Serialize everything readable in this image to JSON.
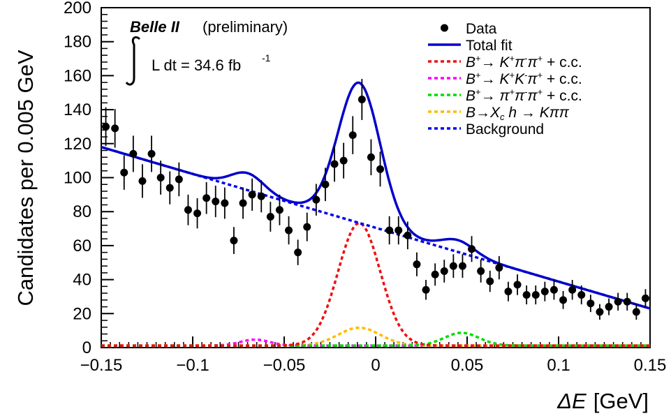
{
  "chart_data": {
    "type": "scatter",
    "title": "",
    "experiment": "Belle II",
    "status": "(preliminary)",
    "luminosity": "L dt = 34.6 fb",
    "luminosity_exp": "-1",
    "xlabel_symbol": "ΔE",
    "xlabel_unit": "[GeV]",
    "ylabel": "Candidates per 0.005 GeV",
    "xlim": [
      -0.15,
      0.15
    ],
    "ylim": [
      0,
      200
    ],
    "xticks": [
      -0.15,
      -0.1,
      -0.05,
      0,
      0.05,
      0.1,
      0.15
    ],
    "xtick_labels": [
      "−0.15",
      "−0.1",
      "−0.05",
      "0",
      "0.05",
      "0.1",
      "0.15"
    ],
    "yticks": [
      0,
      20,
      40,
      60,
      80,
      100,
      120,
      140,
      160,
      180,
      200
    ],
    "ytick_labels": [
      "0",
      "20",
      "40",
      "60",
      "80",
      "100",
      "120",
      "140",
      "160",
      "180",
      "200"
    ],
    "grid": false,
    "legend_position": "top-right",
    "data_points": {
      "x": [
        -0.1475,
        -0.1425,
        -0.1375,
        -0.1325,
        -0.1275,
        -0.1225,
        -0.1175,
        -0.1125,
        -0.1075,
        -0.1025,
        -0.0975,
        -0.0925,
        -0.0875,
        -0.0825,
        -0.0775,
        -0.0725,
        -0.0675,
        -0.0625,
        -0.0575,
        -0.0525,
        -0.0475,
        -0.0425,
        -0.0375,
        -0.0325,
        -0.0275,
        -0.0225,
        -0.0175,
        -0.0125,
        -0.0075,
        -0.0025,
        0.0025,
        0.0075,
        0.0125,
        0.0175,
        0.0225,
        0.0275,
        0.0325,
        0.0375,
        0.0425,
        0.0475,
        0.0525,
        0.0575,
        0.0625,
        0.0675,
        0.0725,
        0.0775,
        0.0825,
        0.0875,
        0.0925,
        0.0975,
        0.1025,
        0.1075,
        0.1125,
        0.1175,
        0.1225,
        0.1275,
        0.1325,
        0.1375,
        0.1425,
        0.1475
      ],
      "y": [
        130,
        129,
        103,
        114,
        98,
        114,
        100,
        94,
        99,
        81,
        79,
        88,
        86,
        85,
        63,
        85,
        90,
        89,
        77,
        81,
        69,
        56,
        71,
        87,
        96,
        108,
        110,
        125,
        146,
        112,
        105,
        69,
        69,
        66,
        49,
        34,
        43,
        45,
        48,
        48,
        58,
        45,
        39,
        47,
        33,
        37,
        31,
        31,
        33,
        34,
        28,
        34,
        31,
        26,
        21,
        24,
        27,
        27,
        21,
        29
      ]
    },
    "series": [
      {
        "name": "Data",
        "color": "#000000",
        "style": "marker"
      },
      {
        "name": "Total fit",
        "color": "#0000cc",
        "style": "solid"
      },
      {
        "name": "B+→ K+π-π+ + c.c.",
        "color": "#ee1111",
        "style": "dotted"
      },
      {
        "name": "B+→ K+K-π+ + c.c.",
        "color": "#ff00ff",
        "style": "dotted"
      },
      {
        "name": "B+→ π+π-π+ + c.c.",
        "color": "#00dd00",
        "style": "dotted"
      },
      {
        "name": "B→Xc h → Kππ",
        "color": "#ffbb00",
        "style": "dotted"
      },
      {
        "name": "Background",
        "color": "#0000ee",
        "style": "dotted"
      }
    ],
    "component_model": {
      "background": {
        "value_at_xmin": 118,
        "value_at_xmax": 23
      },
      "kpipi_signal": {
        "mean": -0.009,
        "sigma": 0.0115,
        "peak": 72
      },
      "kkpi_signal": {
        "mean": -0.066,
        "sigma": 0.008,
        "peak": 3.5
      },
      "pipipi_signal": {
        "mean": 0.047,
        "sigma": 0.0095,
        "peak": 7.5
      },
      "xc_h_signal": {
        "mean": -0.009,
        "sigma": 0.0115,
        "peak": 10.5
      },
      "total_fit_extra_bumps": [
        {
          "mean": -0.07,
          "sigma": 0.009,
          "peak": 10
        },
        {
          "mean": 0.045,
          "sigma": 0.009,
          "peak": 7
        }
      ]
    }
  }
}
